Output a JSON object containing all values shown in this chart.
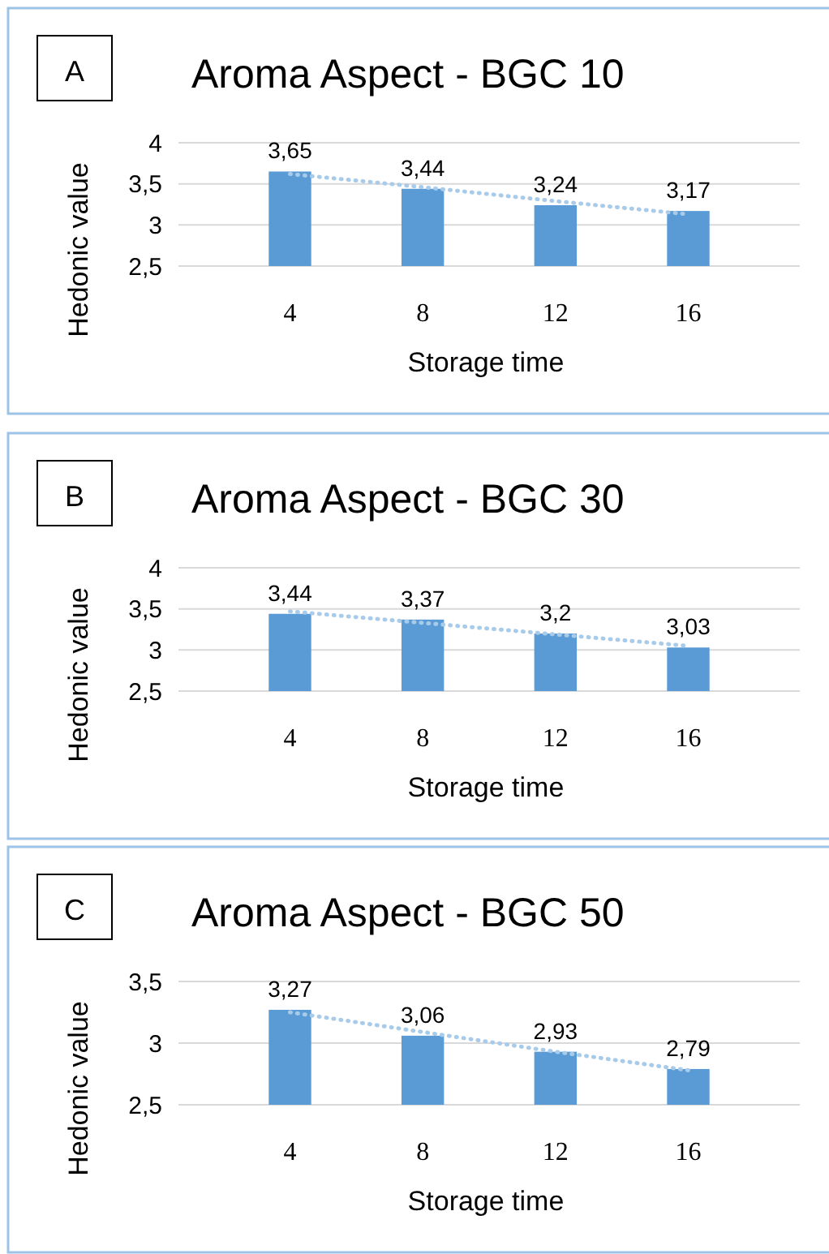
{
  "chart_data": [
    {
      "type": "bar",
      "title": "Aroma Aspect - BGC 10",
      "annotations": [
        "A"
      ],
      "xlabel": "Storage time",
      "ylabel": "Hedonic value",
      "categories": [
        "4",
        "8",
        "12",
        "16"
      ],
      "ylim": [
        2.5,
        4
      ],
      "yticks": [
        {
          "value": 2.5,
          "label": "2,5"
        },
        {
          "value": 3,
          "label": "3"
        },
        {
          "value": 3.5,
          "label": "3,5"
        },
        {
          "value": 4,
          "label": "4"
        }
      ],
      "grid": "y",
      "series": [
        {
          "color": "#5b9bd5",
          "values": [
            3.65,
            3.44,
            3.24,
            3.17
          ],
          "value_labels": [
            "3,65",
            "3,44",
            "3,24",
            "3,17"
          ]
        },
        {
          "type": "line",
          "x": [
            "4",
            "8",
            "12",
            "16"
          ],
          "color": "#a9cbea",
          "values": [
            3.62,
            3.46,
            3.29,
            3.13
          ],
          "line_style": "dotted",
          "marker": "none"
        }
      ]
    },
    {
      "type": "bar",
      "title": "Aroma Aspect - BGC 30",
      "annotations": [
        "B"
      ],
      "xlabel": "Storage time",
      "ylabel": "Hedonic value",
      "categories": [
        "4",
        "8",
        "12",
        "16"
      ],
      "ylim": [
        2.5,
        4
      ],
      "yticks": [
        {
          "value": 2.5,
          "label": "2,5"
        },
        {
          "value": 3,
          "label": "3"
        },
        {
          "value": 3.5,
          "label": "3,5"
        },
        {
          "value": 4,
          "label": "4"
        }
      ],
      "grid": "y",
      "series": [
        {
          "color": "#5b9bd5",
          "values": [
            3.44,
            3.37,
            3.2,
            3.03
          ],
          "value_labels": [
            "3,44",
            "3,37",
            "3,2",
            "3,03"
          ]
        },
        {
          "type": "line",
          "x": [
            "4",
            "8",
            "12",
            "16"
          ],
          "color": "#a9cbea",
          "values": [
            3.47,
            3.33,
            3.19,
            3.05
          ],
          "line_style": "dotted",
          "marker": "none"
        }
      ]
    },
    {
      "type": "bar",
      "title": "Aroma Aspect - BGC 50",
      "annotations": [
        "C"
      ],
      "xlabel": "Storage time",
      "ylabel": "Hedonic value",
      "categories": [
        "4",
        "8",
        "12",
        "16"
      ],
      "ylim": [
        2.5,
        3.5
      ],
      "yticks": [
        {
          "value": 2.5,
          "label": "2,5"
        },
        {
          "value": 3,
          "label": "3"
        },
        {
          "value": 3.5,
          "label": "3,5"
        }
      ],
      "grid": "y",
      "series": [
        {
          "color": "#5b9bd5",
          "values": [
            3.27,
            3.06,
            2.93,
            2.79
          ],
          "value_labels": [
            "3,27",
            "3,06",
            "2,93",
            "2,79"
          ]
        },
        {
          "type": "line",
          "x": [
            "4",
            "8",
            "12",
            "16"
          ],
          "color": "#a9cbea",
          "values": [
            3.25,
            3.09,
            2.93,
            2.78
          ],
          "line_style": "dotted",
          "marker": "none"
        }
      ]
    }
  ]
}
